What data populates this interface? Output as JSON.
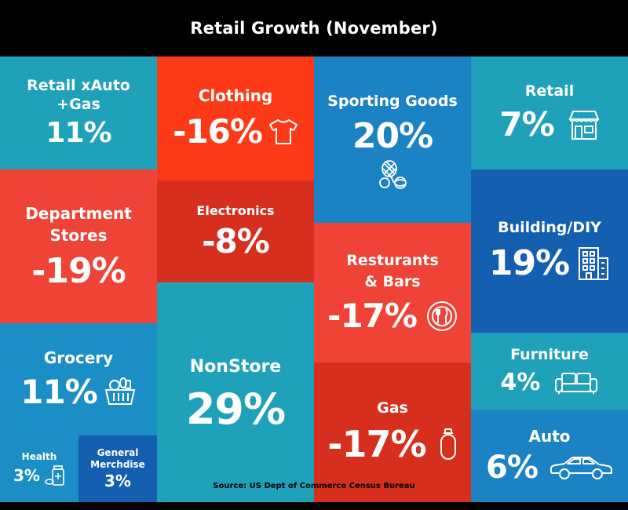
{
  "title": "Retail Growth (November)",
  "source": "Source: US Dept of Commerce Census Bureau",
  "chart_data": {
    "type": "table",
    "title": "Retail Growth (November)",
    "categories": [
      "Retail xAuto +Gas",
      "Department Stores",
      "Grocery",
      "Health",
      "General Merchdise",
      "Clothing",
      "Electronics",
      "NonStore",
      "Sporting Goods",
      "Resturants & Bars",
      "Gas",
      "Retail",
      "Building/DIY",
      "Furniture",
      "Auto"
    ],
    "values": [
      11,
      -19,
      11,
      3,
      3,
      -16,
      -8,
      29,
      20,
      -17,
      -17,
      7,
      19,
      4,
      6
    ],
    "unit": "%"
  },
  "tiles": {
    "retail_xauto": {
      "line1": "Retail xAuto",
      "line2": "+Gas",
      "value": "11%",
      "color": "#1fa1ba"
    },
    "department": {
      "line1": "Department",
      "line2": "Stores",
      "value": "-19%",
      "color": "#ee4336"
    },
    "grocery": {
      "label": "Grocery",
      "value": "11%",
      "icon": "basket-icon",
      "color": "#1b8ec5"
    },
    "health": {
      "label": "Health",
      "value": "3%",
      "icon": "medicine-icon",
      "color": "#1b8ec5"
    },
    "general": {
      "line1": "General",
      "line2": "Merchdise",
      "value": "3%",
      "color": "#155fb0"
    },
    "clothing": {
      "label": "Clothing",
      "value": "-16%",
      "icon": "tshirt-icon",
      "color": "#fd3a18"
    },
    "electronics": {
      "label": "Electronics",
      "value": "-8%",
      "color": "#d62f1d"
    },
    "nonstore": {
      "label": "NonStore",
      "value": "29%",
      "color": "#1fa1ba"
    },
    "sporting": {
      "label": "Sporting Goods",
      "value": "20%",
      "icon": "sports-balls-icon",
      "color": "#1b82c4"
    },
    "restaurants": {
      "line1": "Resturants",
      "line2": "& Bars",
      "value": "-17%",
      "icon": "plate-cutlery-icon",
      "color": "#ee4336"
    },
    "gas": {
      "label": "Gas",
      "value": "-17%",
      "icon": "gas-cylinder-icon",
      "color": "#d62f1d"
    },
    "retail": {
      "label": "Retail",
      "value": "7%",
      "icon": "storefront-icon",
      "color": "#1fa1ba"
    },
    "building": {
      "label": "Building/DIY",
      "value": "19%",
      "icon": "building-icon",
      "color": "#155fb0"
    },
    "furniture": {
      "label": "Furniture",
      "value": "4%",
      "icon": "sofa-icon",
      "color": "#1fa1ba"
    },
    "auto": {
      "label": "Auto",
      "value": "6%",
      "icon": "car-icon",
      "color": "#1b82c4"
    }
  }
}
